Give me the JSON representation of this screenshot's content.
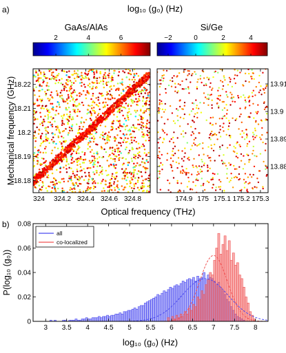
{
  "figure": {
    "panel_a_label": "a)",
    "panel_b_label": "b)",
    "colorbar_title": "log₁₀ (g₀) (Hz)"
  },
  "chart_data": [
    {
      "type": "scatter",
      "title": "GaAs/AlAs",
      "xlabel": "Optical frequency (THz)",
      "ylabel": "Mechanical frequency (GHz)",
      "xlim": [
        323.95,
        324.95
      ],
      "ylim": [
        18.175,
        18.2265
      ],
      "xticks": [
        324,
        324.2,
        324.4,
        324.6,
        324.8
      ],
      "xtick_labels": [
        "324",
        "324.2",
        "324.4",
        "324.6",
        "324.8"
      ],
      "yticks": [
        18.18,
        18.19,
        18.2,
        18.21,
        18.22
      ],
      "ytick_labels": [
        "18.18",
        "18.19",
        "18.2",
        "18.21",
        "18.22"
      ],
      "color_var": "log10(g0)",
      "colorbar": {
        "range": [
          0.6,
          7.8
        ],
        "ticks": [
          2,
          4,
          6
        ],
        "tick_labels": [
          "2",
          "4",
          "6"
        ]
      },
      "co_localized_band": {
        "x": [
          323.95,
          324.95
        ],
        "y": [
          18.1795,
          18.2245
        ],
        "color_range": [
          6.3,
          7.4
        ]
      },
      "background_points": {
        "count": 1500,
        "color_range": [
          4.5,
          7.6
        ]
      },
      "grid": false
    },
    {
      "type": "scatter",
      "title": "Si/Ge",
      "xlim": [
        174.76,
        175.34
      ],
      "ylim": [
        13.8705,
        13.9155
      ],
      "xticks": [
        174.9,
        175,
        175.1,
        175.2,
        175.3
      ],
      "xtick_labels": [
        "174.9",
        "175",
        "175.1",
        "175.2",
        "175.3"
      ],
      "yticks": [
        13.88,
        13.89,
        13.9,
        13.91
      ],
      "ytick_labels": [
        "13.88",
        "13.89",
        "13.9",
        "13.91"
      ],
      "y_axis_side": "right",
      "color_var": "log10(g0)",
      "colorbar": {
        "range": [
          -2.8,
          5.2
        ],
        "ticks": [
          -2,
          0,
          2,
          4
        ],
        "tick_labels": [
          "−2",
          "0",
          "2",
          "4"
        ]
      },
      "points": {
        "count": 620,
        "color_range": [
          1.0,
          5.0
        ]
      },
      "grid": false
    },
    {
      "type": "bar",
      "subtype": "histogram",
      "xlabel": "log₁₀ (g₀) (Hz)",
      "ylabel": "P(log₁₀ (g₀))",
      "xlim": [
        2.7,
        8.3
      ],
      "ylim": [
        0,
        0.08
      ],
      "xticks": [
        3,
        3.5,
        4,
        4.5,
        5,
        5.5,
        6,
        6.5,
        7,
        7.5,
        8
      ],
      "xtick_labels": [
        "3",
        "3.5",
        "4",
        "4.5",
        "5",
        "5.5",
        "6",
        "6.5",
        "7",
        "7.5",
        "8"
      ],
      "yticks": [
        0,
        0.02,
        0.04,
        0.06,
        0.08
      ],
      "ytick_labels": [
        "0",
        "0.02",
        "0.04",
        "0.06",
        "0.08"
      ],
      "bin_width": 0.05,
      "legend_position": "top-left",
      "series": [
        {
          "name": "all",
          "color": "#4a4af0",
          "x_start": 2.9,
          "values": [
            0,
            0,
            0,
            0,
            0.001,
            0,
            0.001,
            0,
            0,
            0,
            0.001,
            0.001,
            0,
            0.001,
            0.001,
            0.001,
            0.002,
            0.001,
            0.001,
            0.002,
            0.002,
            0.003,
            0.002,
            0.002,
            0.003,
            0.003,
            0.003,
            0.004,
            0.003,
            0.004,
            0.004,
            0.005,
            0.004,
            0.005,
            0.005,
            0.006,
            0.006,
            0.007,
            0.006,
            0.008,
            0.008,
            0.009,
            0.009,
            0.01,
            0.011,
            0.01,
            0.012,
            0.013,
            0.013,
            0.015,
            0.016,
            0.017,
            0.018,
            0.019,
            0.02,
            0.022,
            0.021,
            0.023,
            0.025,
            0.024,
            0.026,
            0.028,
            0.027,
            0.029,
            0.03,
            0.029,
            0.031,
            0.033,
            0.032,
            0.034,
            0.035,
            0.034,
            0.036,
            0.033,
            0.037,
            0.035,
            0.036,
            0.04,
            0.034,
            0.038,
            0.036,
            0.035,
            0.033,
            0.03,
            0.032,
            0.028,
            0.025,
            0.022,
            0.018,
            0.016,
            0.012,
            0.009,
            0.006,
            0.004,
            0.003,
            0.002,
            0.001,
            0,
            0,
            0,
            0
          ]
        },
        {
          "name": "co-localized",
          "color": "#f05050",
          "x_start": 5.9,
          "values": [
            0.003,
            0,
            0.004,
            0.002,
            0.005,
            0.003,
            0.006,
            0.004,
            0.008,
            0.006,
            0.011,
            0.009,
            0.014,
            0.012,
            0.02,
            0.018,
            0.025,
            0.022,
            0.03,
            0.034,
            0.04,
            0.038,
            0.05,
            0.06,
            0.072,
            0.055,
            0.063,
            0.07,
            0.058,
            0.066,
            0.05,
            0.056,
            0.046,
            0.048,
            0.038,
            0.035,
            0.028,
            0.02,
            0.015,
            0.008,
            0.005,
            0.002
          ]
        }
      ],
      "fit_curves": [
        {
          "series": "all",
          "type": "gaussian",
          "amplitude": 0.035,
          "mean": 6.8,
          "sigma": 0.55
        },
        {
          "series": "co-localized",
          "type": "gaussian",
          "amplitude": 0.054,
          "mean": 7.0,
          "sigma": 0.33
        }
      ],
      "grid": false
    }
  ]
}
